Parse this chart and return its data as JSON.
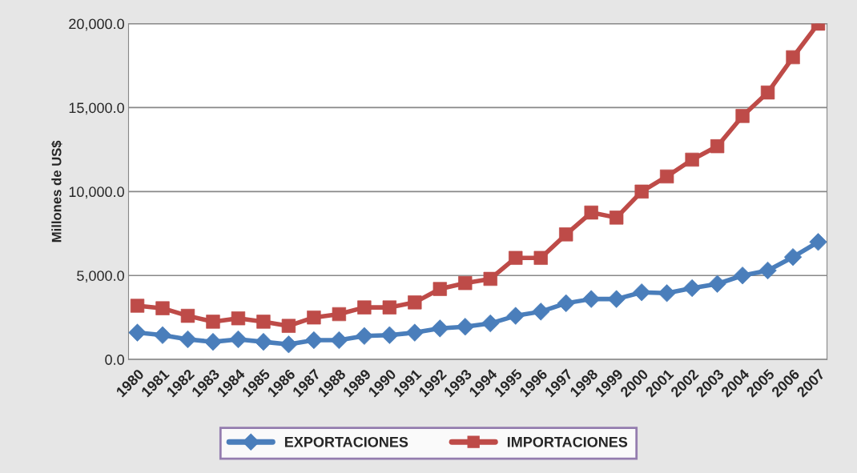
{
  "chart_data": {
    "type": "line",
    "ylabel": "Millones de US$",
    "categories": [
      "1980",
      "1981",
      "1982",
      "1983",
      "1984",
      "1985",
      "1986",
      "1987",
      "1988",
      "1989",
      "1990",
      "1991",
      "1992",
      "1993",
      "1994",
      "1995",
      "1996",
      "1997",
      "1998",
      "1999",
      "2000",
      "2001",
      "2002",
      "2003",
      "2004",
      "2005",
      "2006",
      "2007"
    ],
    "series": [
      {
        "name": "EXPORTACIONES",
        "color": "#4a7ebb",
        "marker": "diamond",
        "values": [
          1600,
          1450,
          1200,
          1050,
          1200,
          1050,
          900,
          1150,
          1150,
          1400,
          1450,
          1600,
          1850,
          1950,
          2150,
          2600,
          2850,
          3350,
          3600,
          3600,
          4000,
          3950,
          4250,
          4500,
          5000,
          5300,
          6100,
          7000
        ]
      },
      {
        "name": "IMPORTACIONES",
        "color": "#be4b48",
        "marker": "square",
        "values": [
          3200,
          3050,
          2600,
          2250,
          2450,
          2250,
          2000,
          2500,
          2700,
          3100,
          3100,
          3400,
          4200,
          4550,
          4800,
          6050,
          6050,
          7450,
          8750,
          8450,
          10000,
          10900,
          11900,
          12700,
          14500,
          15900,
          18000,
          20000
        ]
      }
    ],
    "ylim": [
      0,
      20000
    ],
    "yticks": [
      {
        "value": 0,
        "label": "0.0"
      },
      {
        "value": 5000,
        "label": "5,000.0"
      },
      {
        "value": 10000,
        "label": "10,000.0"
      },
      {
        "value": 15000,
        "label": "15,000.0"
      },
      {
        "value": 20000,
        "label": "20,000.0"
      }
    ],
    "grid": "y",
    "legend": "bottom",
    "line_style": "solid"
  }
}
